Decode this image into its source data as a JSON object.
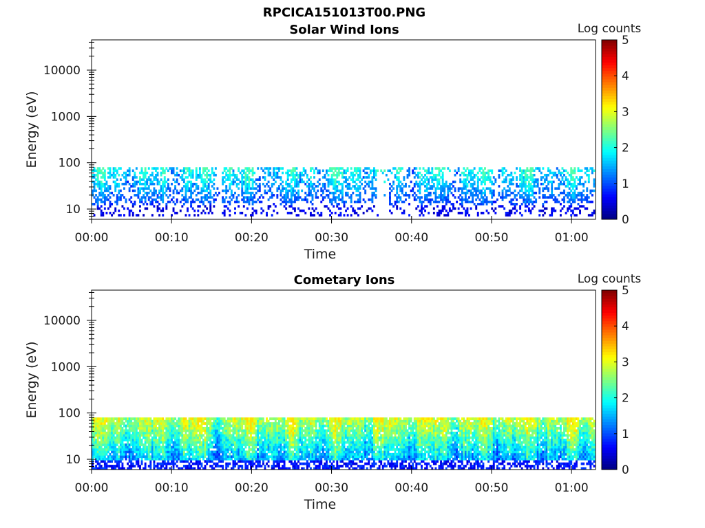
{
  "figure": {
    "title": "RPCICA151013T00.PNG"
  },
  "chart_data": [
    {
      "type": "heatmap",
      "title": "Solar Wind Ions",
      "xlabel": "Time",
      "ylabel": "Energy (eV)",
      "y_scale": "log",
      "ylim": [
        6,
        45000
      ],
      "y_ticks": [
        10,
        100,
        1000,
        10000
      ],
      "y_tick_labels": [
        "10",
        "100",
        "1000",
        "10000"
      ],
      "x_range_minutes": [
        0,
        63
      ],
      "x_ticks_minutes": [
        0,
        10,
        20,
        30,
        40,
        50,
        60
      ],
      "x_tick_labels": [
        "00:00",
        "00:10",
        "00:20",
        "00:30",
        "00:40",
        "00:50",
        "01:00"
      ],
      "colorbar": {
        "label": "Log counts",
        "min": 0,
        "max": 5,
        "ticks": [
          "0",
          "1",
          "2",
          "3",
          "4",
          "5"
        ],
        "colormap": "jet"
      },
      "data_description": {
        "energy_band_eV": [
          7,
          80
        ],
        "typical_log_counts": [
          0.5,
          2.2
        ],
        "peak_log_counts": 2.3,
        "gap_minutes": [
          35.5,
          37
        ]
      }
    },
    {
      "type": "heatmap",
      "title": "Cometary Ions",
      "xlabel": "Time",
      "ylabel": "Energy (eV)",
      "y_scale": "log",
      "ylim": [
        6,
        45000
      ],
      "y_ticks": [
        10,
        100,
        1000,
        10000
      ],
      "y_tick_labels": [
        "10",
        "100",
        "1000",
        "10000"
      ],
      "x_range_minutes": [
        0,
        63
      ],
      "x_ticks_minutes": [
        0,
        10,
        20,
        30,
        40,
        50,
        60
      ],
      "x_tick_labels": [
        "00:00",
        "00:10",
        "00:20",
        "00:30",
        "00:40",
        "00:50",
        "01:00"
      ],
      "colorbar": {
        "label": "Log counts",
        "min": 0,
        "max": 5,
        "ticks": [
          "0",
          "1",
          "2",
          "3",
          "4",
          "5"
        ],
        "colormap": "jet"
      },
      "data_description": {
        "energy_band_eV": [
          6,
          80
        ],
        "typical_log_counts": [
          1.0,
          3.0
        ],
        "peak_log_counts": 3.3,
        "gap_minutes": []
      }
    }
  ],
  "colors": {
    "axis": "#000000",
    "background": "#ffffff"
  }
}
